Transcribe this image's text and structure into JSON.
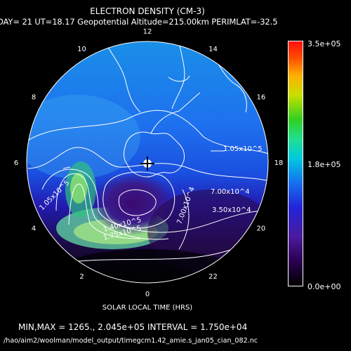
{
  "plot": {
    "title": "ELECTRON DENSITY (CM-3)",
    "subtitle": "DAY= 21 UT=18.17 Geopotential Altitude=215.00km PERIMLAT=-32.5",
    "xlabel": "SOLAR LOCAL TIME (HRS)",
    "minmax_text": "MIN,MAX =      1265., 2.045e+05 INTERVAL =  1.750e+04",
    "file_path": "/hao/aim2/woolman/model_output/timegcm1.42_amie.s_jan05_cian_082.nc",
    "units": "CM-3",
    "data_min": 1265,
    "data_max": 204500,
    "contour_interval": 17500
  },
  "local_time_labels": [
    "0",
    "2",
    "4",
    "6",
    "8",
    "10",
    "12",
    "14",
    "16",
    "18",
    "20",
    "22"
  ],
  "contour_labels": [
    "1.05x10^5",
    "7.00x10^4",
    "3.50x10^4",
    "1.05x10^5",
    "1.40x10^5",
    "1.75x10^5",
    "7.00x10^4"
  ],
  "colorbar": {
    "max_label": "3.5e+05",
    "mid_label": "1.8e+05",
    "min_label": "0.0e+00",
    "vmin": 0,
    "vmax": 350000
  },
  "colors": {
    "background": "#000000",
    "low": "#2a0050",
    "mid": "#00c8e0",
    "high": "#ff1010",
    "contour": "#ffffff",
    "coastline": "#ffffff"
  }
}
